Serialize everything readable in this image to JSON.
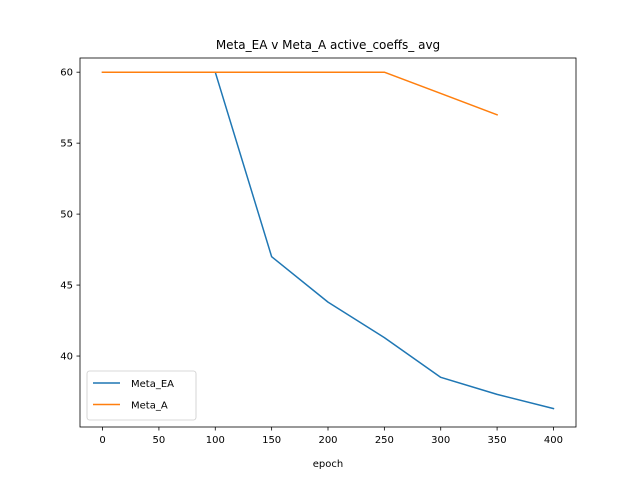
{
  "chart_data": {
    "type": "line",
    "title": "Meta_EA v Meta_A active_coeffs_ avg",
    "xlabel": "epoch",
    "ylabel": "",
    "xlim": [
      -20,
      420
    ],
    "ylim": [
      35.0,
      61.0
    ],
    "xticks": [
      0,
      50,
      100,
      150,
      200,
      250,
      300,
      350,
      400
    ],
    "yticks": [
      40,
      45,
      50,
      55,
      60
    ],
    "grid": false,
    "legend_position": "lower left",
    "series": [
      {
        "name": "Meta_EA",
        "color": "#1f77b4",
        "x": [
          0,
          50,
          100,
          150,
          200,
          250,
          300,
          350,
          400
        ],
        "y": [
          60.0,
          60.0,
          60.0,
          47.0,
          43.8,
          41.3,
          38.5,
          37.3,
          36.3
        ]
      },
      {
        "name": "Meta_A",
        "color": "#ff7f0e",
        "x": [
          0,
          50,
          100,
          150,
          200,
          250,
          300,
          350
        ],
        "y": [
          60.0,
          60.0,
          60.0,
          60.0,
          60.0,
          60.0,
          58.5,
          57.0
        ]
      }
    ]
  }
}
